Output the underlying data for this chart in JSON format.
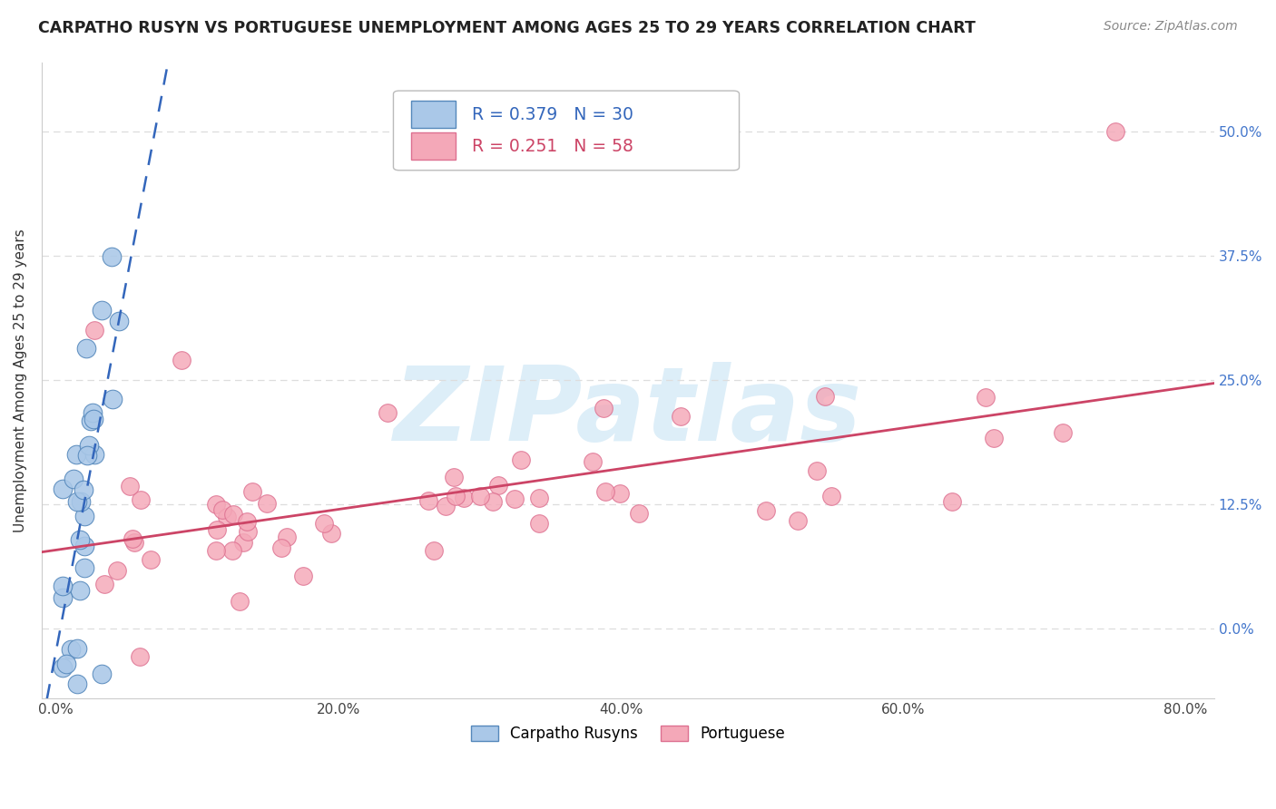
{
  "title": "CARPATHO RUSYN VS PORTUGUESE UNEMPLOYMENT AMONG AGES 25 TO 29 YEARS CORRELATION CHART",
  "source": "Source: ZipAtlas.com",
  "ylabel": "Unemployment Among Ages 25 to 29 years",
  "xlim": [
    -0.01,
    0.82
  ],
  "ylim": [
    -0.07,
    0.57
  ],
  "xticks": [
    0.0,
    0.2,
    0.4,
    0.6,
    0.8
  ],
  "xticklabels": [
    "0.0%",
    "20.0%",
    "40.0%",
    "60.0%",
    "80.0%"
  ],
  "yticks": [
    0.0,
    0.125,
    0.25,
    0.375,
    0.5
  ],
  "yticklabels": [
    "0.0%",
    "12.5%",
    "25.0%",
    "37.5%",
    "50.0%"
  ],
  "blue_color": "#aac8e8",
  "blue_edge_color": "#5588bb",
  "pink_color": "#f4a8b8",
  "pink_edge_color": "#dd7090",
  "blue_line_color": "#3366bb",
  "pink_line_color": "#cc4466",
  "ytick_color": "#4477cc",
  "R_blue": 0.379,
  "N_blue": 30,
  "R_pink": 0.251,
  "N_pink": 58,
  "legend_label_blue": "Carpatho Rusyns",
  "legend_label_pink": "Portuguese",
  "watermark_color": "#ddeef8",
  "background_color": "#ffffff",
  "grid_color": "#dddddd"
}
